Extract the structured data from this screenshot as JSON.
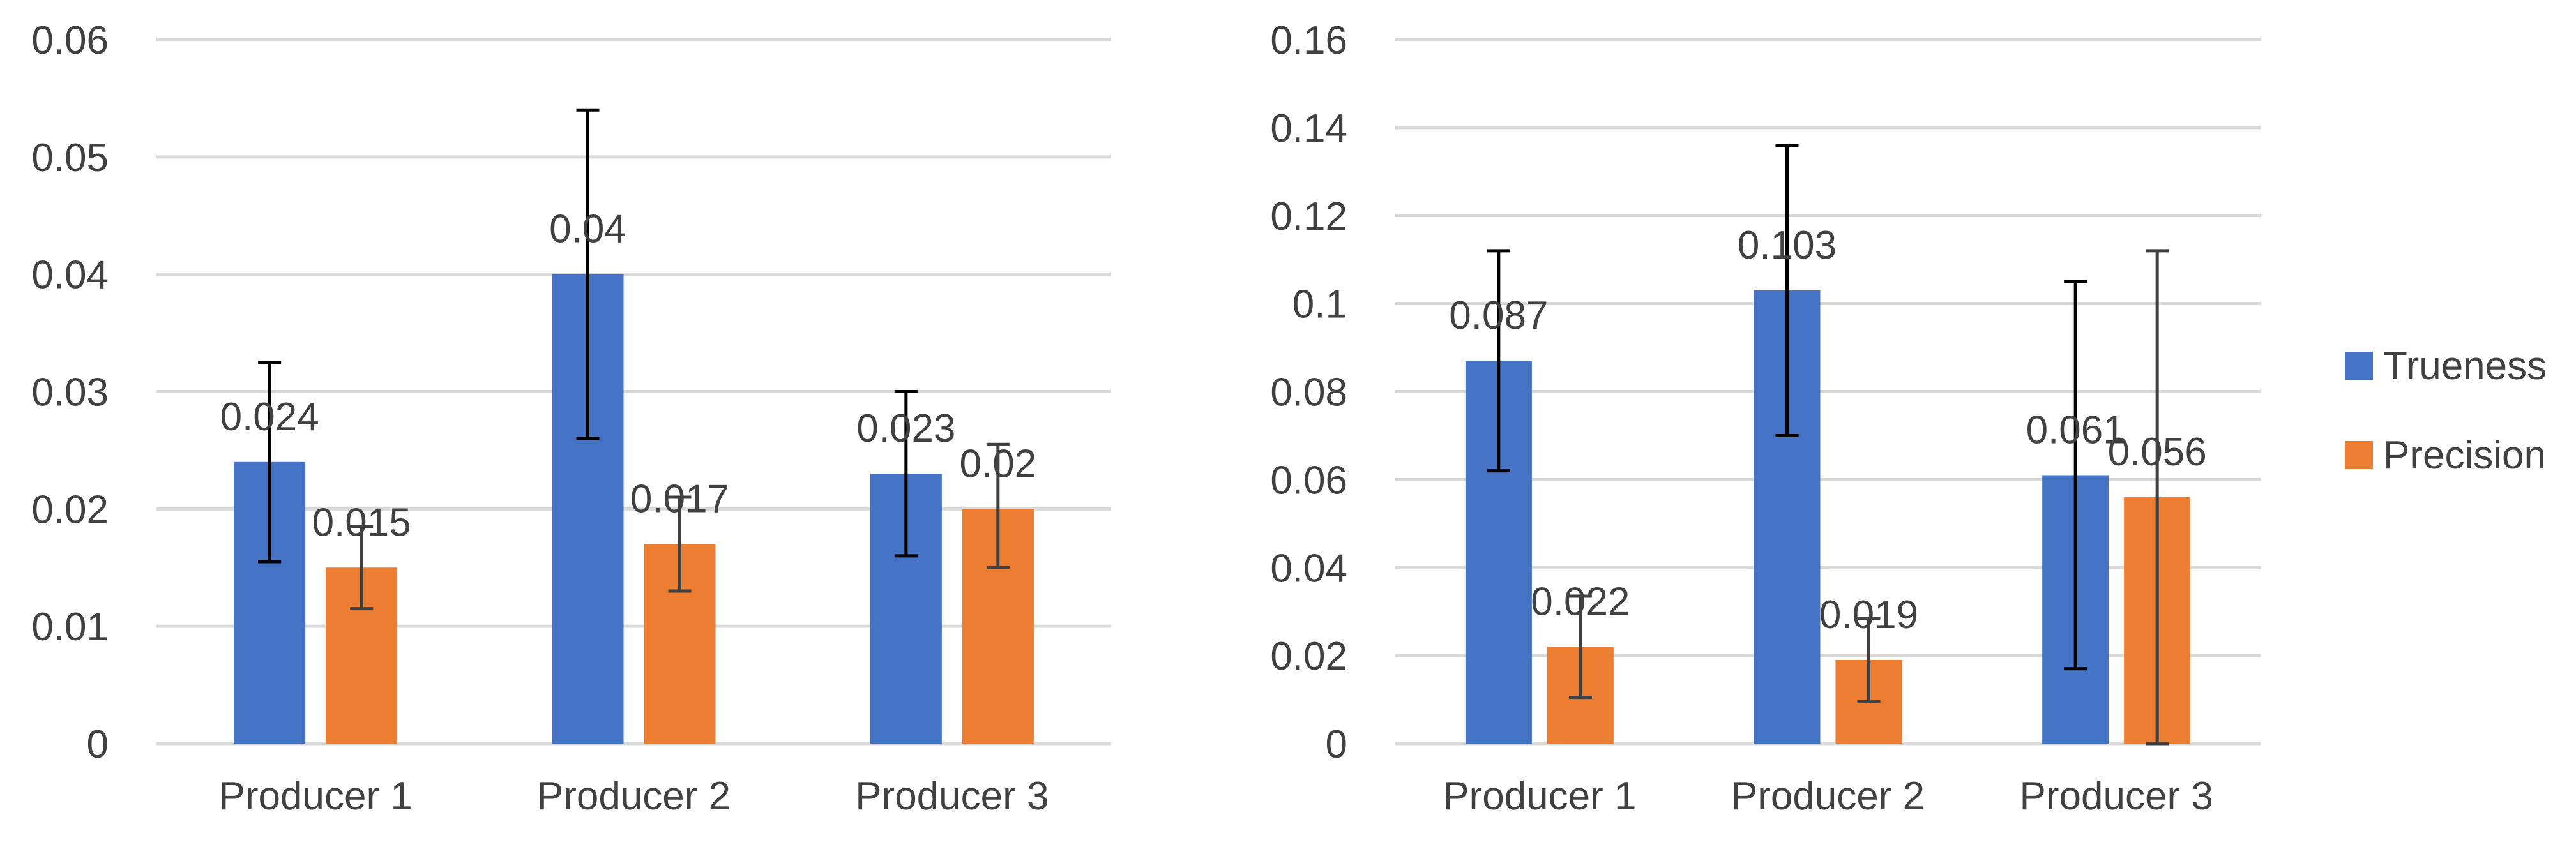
{
  "colors": {
    "trueness": "#4472C4",
    "precision": "#ED7D31",
    "grid": "#D9D9D9",
    "text": "#404040",
    "error": "#000000"
  },
  "legend": {
    "items": [
      {
        "name": "Trueness"
      },
      {
        "name": "Precision"
      }
    ]
  },
  "chart_data": [
    {
      "type": "bar",
      "title": "",
      "xlabel": "",
      "ylabel": "",
      "categories": [
        "Producer 1",
        "Producer 2",
        "Producer 3"
      ],
      "ylim": [
        0,
        0.06
      ],
      "yticks": [
        "0",
        "0.01",
        "0.02",
        "0.03",
        "0.04",
        "0.05",
        "0.06"
      ],
      "ytick_values": [
        0,
        0.01,
        0.02,
        0.03,
        0.04,
        0.05,
        0.06
      ],
      "grid": true,
      "legend": "none",
      "series": [
        {
          "name": "Trueness",
          "values": [
            0.024,
            0.04,
            0.023
          ],
          "labels": [
            "0.024",
            "0.04",
            "0.023"
          ],
          "error_low": [
            0.0155,
            0.026,
            0.016
          ],
          "error_high": [
            0.0325,
            0.054,
            0.03
          ]
        },
        {
          "name": "Precision",
          "values": [
            0.015,
            0.017,
            0.02
          ],
          "labels": [
            "0.015",
            "0.017",
            "0.02"
          ],
          "error_low": [
            0.0115,
            0.013,
            0.015
          ],
          "error_high": [
            0.0185,
            0.021,
            0.0255
          ]
        }
      ]
    },
    {
      "type": "bar",
      "title": "",
      "xlabel": "",
      "ylabel": "",
      "categories": [
        "Producer 1",
        "Producer 2",
        "Producer 3"
      ],
      "ylim": [
        0,
        0.16
      ],
      "yticks": [
        "0",
        "0.02",
        "0.04",
        "0.06",
        "0.08",
        "0.1",
        "0.12",
        "0.14",
        "0.16"
      ],
      "ytick_values": [
        0,
        0.02,
        0.04,
        0.06,
        0.08,
        0.1,
        0.12,
        0.14,
        0.16
      ],
      "grid": true,
      "legend": "right",
      "series": [
        {
          "name": "Trueness",
          "values": [
            0.087,
            0.103,
            0.061
          ],
          "labels": [
            "0.087",
            "0.103",
            "0.061"
          ],
          "error_low": [
            0.062,
            0.07,
            0.017
          ],
          "error_high": [
            0.112,
            0.136,
            0.105
          ]
        },
        {
          "name": "Precision",
          "values": [
            0.022,
            0.019,
            0.056
          ],
          "labels": [
            "0.022",
            "0.019",
            "0.056"
          ],
          "error_low": [
            0.0105,
            0.0095,
            0.0
          ],
          "error_high": [
            0.0335,
            0.0285,
            0.112
          ]
        }
      ]
    }
  ]
}
